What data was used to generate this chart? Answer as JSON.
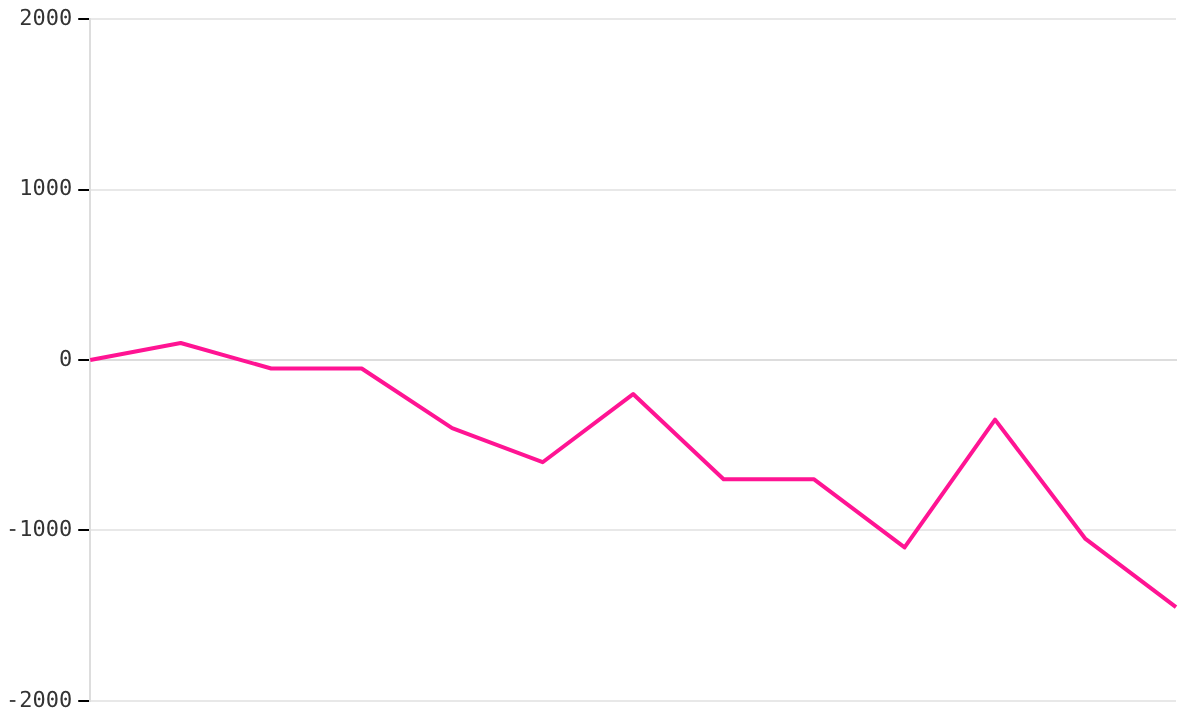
{
  "chart_data": {
    "type": "line",
    "categories": [
      null,
      null,
      null,
      null,
      null,
      null,
      null,
      null,
      null,
      null,
      null,
      null,
      null
    ],
    "series": [
      {
        "color": "#ff1493",
        "values": [
          0,
          100,
          -50,
          -50,
          -400,
          -600,
          -200,
          -700,
          -700,
          -1100,
          -350,
          -1050,
          -1450
        ]
      }
    ],
    "ylim": [
      -2000,
      2000
    ],
    "yticks": [
      -2000,
      -1000,
      0,
      1000,
      2000
    ],
    "grid": "y",
    "tick_labels": "y",
    "legend": false,
    "marker": "none",
    "line_style": "solid"
  }
}
